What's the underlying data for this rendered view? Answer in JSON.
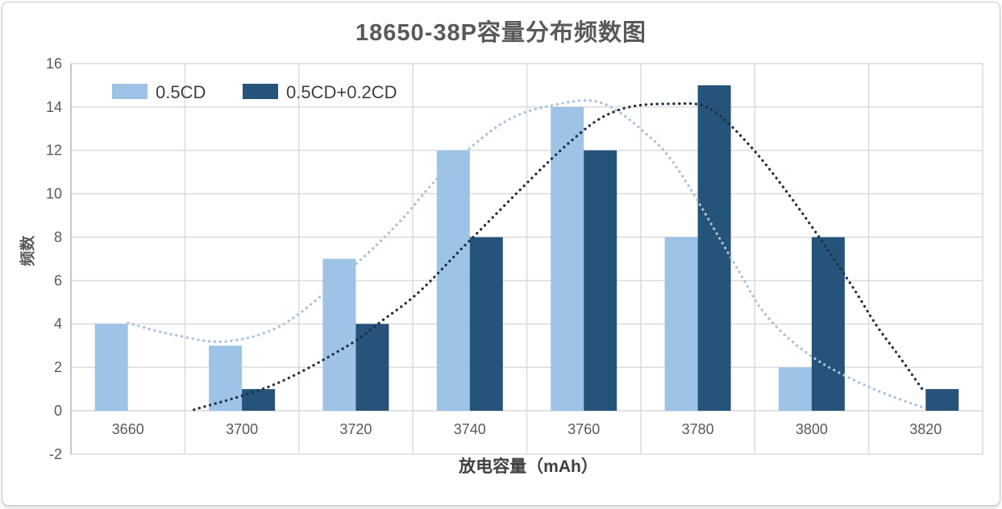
{
  "chart_data": {
    "type": "bar",
    "title": "18650-38P容量分布频数图",
    "xlabel": "放电容量（mAh）",
    "ylabel": "频数",
    "categories": [
      "3660",
      "3700",
      "3720",
      "3740",
      "3760",
      "3780",
      "3800",
      "3820"
    ],
    "series": [
      {
        "name": "0.5CD",
        "color": "#9DC3E6",
        "values": [
          4,
          3,
          7,
          12,
          14,
          8,
          2,
          0
        ]
      },
      {
        "name": "0.5CD+0.2CD",
        "color": "#255379",
        "values": [
          0,
          1,
          4,
          8,
          12,
          15,
          8,
          1
        ]
      }
    ],
    "trend_curves": [
      {
        "series": "0.5CD",
        "color": "#A9C2DA",
        "points": [
          [
            0,
            4.05
          ],
          [
            0.4,
            3.5
          ],
          [
            0.87,
            3.2
          ],
          [
            1.4,
            4.1
          ],
          [
            2.03,
            6.9
          ],
          [
            2.4,
            8.8
          ],
          [
            2.77,
            11.0
          ],
          [
            3.3,
            13.3
          ],
          [
            3.75,
            14.1
          ],
          [
            4.15,
            14.2
          ],
          [
            4.54,
            12.8
          ],
          [
            4.83,
            11.1
          ],
          [
            5.32,
            6.8
          ],
          [
            5.6,
            4.4
          ],
          [
            6.0,
            2.5
          ],
          [
            6.5,
            1.1
          ],
          [
            7.0,
            0.1
          ]
        ]
      },
      {
        "series": "0.5CD+0.2CD",
        "color": "#1E3040",
        "points": [
          [
            0.58,
            0.05
          ],
          [
            1.28,
            1.2
          ],
          [
            1.93,
            3.0
          ],
          [
            2.23,
            4.15
          ],
          [
            2.56,
            5.5
          ],
          [
            3.01,
            7.9
          ],
          [
            3.86,
            12.3
          ],
          [
            4.3,
            13.85
          ],
          [
            4.8,
            14.15
          ],
          [
            5.11,
            13.9
          ],
          [
            5.46,
            12.2
          ],
          [
            5.85,
            9.6
          ],
          [
            6.31,
            6.1
          ],
          [
            6.56,
            4.0
          ],
          [
            6.76,
            2.56
          ],
          [
            6.97,
            1.0
          ]
        ]
      }
    ],
    "ylim": [
      -2,
      16
    ],
    "yticks": [
      -2,
      0,
      2,
      4,
      6,
      8,
      10,
      12,
      14,
      16
    ],
    "grid": true,
    "legend_position": "top-left"
  },
  "style": {
    "grid_color": "#D9D9D9",
    "axis_line_color": "#BFBFBF",
    "tick_text_color": "#595959",
    "legend_text_color": "#404040"
  }
}
